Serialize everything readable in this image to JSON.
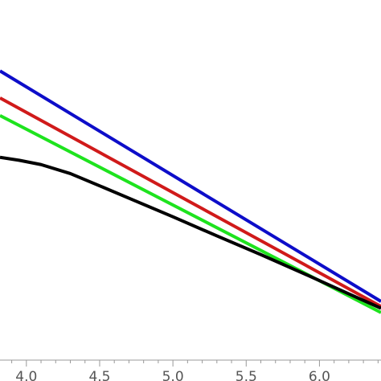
{
  "chart_data": {
    "type": "line",
    "title": "",
    "xlabel": "",
    "ylabel": "",
    "xlim": [
      3.82,
      6.42
    ],
    "ylim": [
      0.0,
      1.0
    ],
    "x_ticks": [
      {
        "value": 4.0,
        "label": "4.0"
      },
      {
        "value": 4.5,
        "label": "4.5"
      },
      {
        "value": 5.0,
        "label": "5.0"
      },
      {
        "value": 5.5,
        "label": "5.5"
      },
      {
        "value": 6.0,
        "label": "6.0"
      }
    ],
    "series": [
      {
        "color": "#0d0dc9",
        "x": [
          3.82,
          6.42
        ],
        "y": [
          0.803,
          0.163
        ]
      },
      {
        "color": "#d01a1a",
        "x": [
          3.82,
          6.42
        ],
        "y": [
          0.728,
          0.149
        ]
      },
      {
        "color": "#1ee31e",
        "x": [
          3.82,
          6.42
        ],
        "y": [
          0.679,
          0.132
        ]
      },
      {
        "color": "#000000",
        "x": [
          3.82,
          3.95,
          4.1,
          4.3,
          4.5,
          4.75,
          5.0,
          5.3,
          5.6,
          5.9,
          6.2,
          6.42
        ],
        "y": [
          0.563,
          0.555,
          0.543,
          0.518,
          0.484,
          0.441,
          0.398,
          0.345,
          0.293,
          0.239,
          0.184,
          0.144
        ]
      }
    ],
    "grid": false,
    "legend": "none"
  }
}
